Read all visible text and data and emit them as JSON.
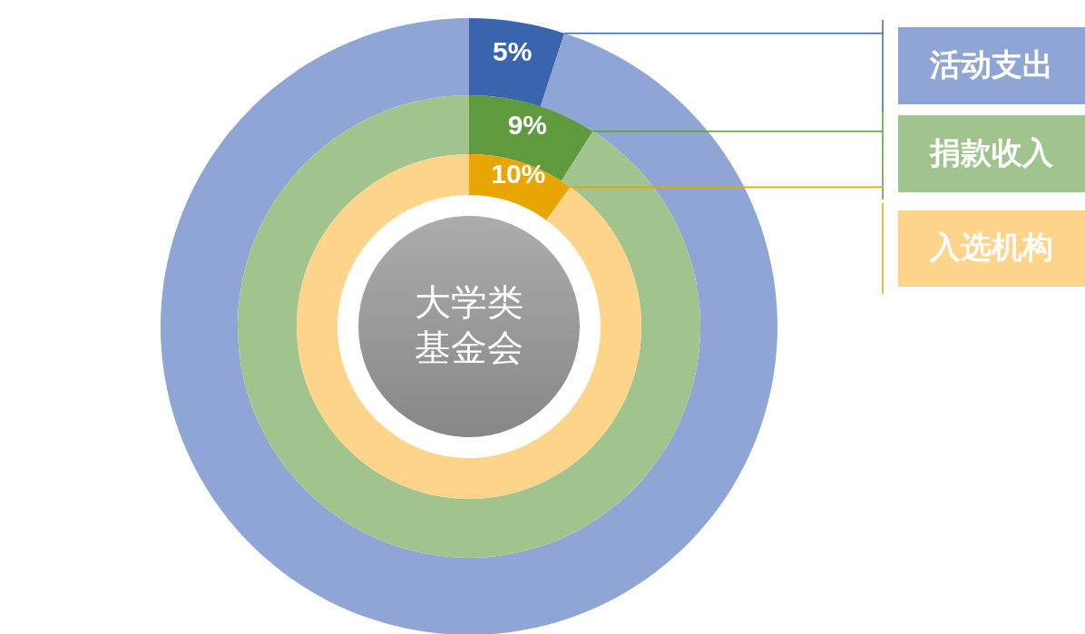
{
  "chart_data": [
    {
      "type": "donut",
      "title": "活动支出",
      "categories": [
        null,
        null
      ],
      "values": [
        5,
        95
      ],
      "colors": [
        "#3b64ae",
        "#8fa5d5"
      ],
      "value_labels": [
        "5%",
        null
      ]
    },
    {
      "type": "donut",
      "title": "捐款收入",
      "categories": [
        null,
        null
      ],
      "values": [
        9,
        91
      ],
      "colors": [
        "#5f9a3e",
        "#a1c48e"
      ],
      "value_labels": [
        "9%",
        null
      ]
    },
    {
      "type": "donut",
      "title": "入选机构",
      "categories": [
        null,
        null
      ],
      "values": [
        10,
        90
      ],
      "colors": [
        "#e9a602",
        "#fdd48a"
      ],
      "value_labels": [
        "10%",
        null
      ],
      "annotations": [
        "大学类",
        "基金会"
      ]
    }
  ]
}
